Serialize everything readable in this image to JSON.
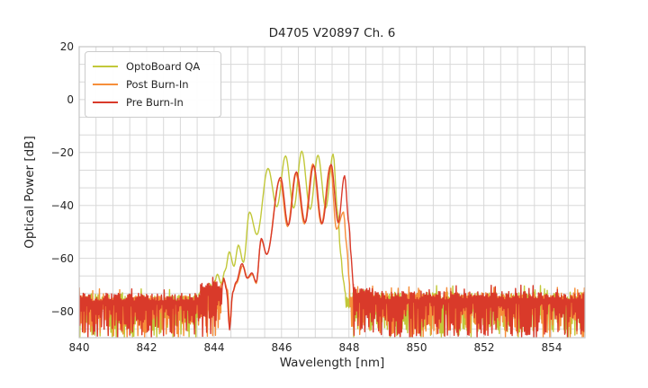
{
  "chart_data": {
    "type": "line",
    "title": "D4705 V20897 Ch. 6",
    "xlabel": "Wavelength [nm]",
    "ylabel": "Optical Power [dB]",
    "xlim": [
      840,
      855
    ],
    "ylim": [
      -90,
      20
    ],
    "xticks": [
      840,
      842,
      844,
      846,
      848,
      850,
      852,
      854
    ],
    "xtick_labels": [
      "840",
      "842",
      "844",
      "846",
      "848",
      "850",
      "852",
      "854"
    ],
    "yticks": [
      20,
      0,
      -20,
      -40,
      -60,
      -80
    ],
    "ytick_labels": [
      "20",
      "0",
      "−20",
      "−40",
      "−60",
      "−80"
    ],
    "grid": {
      "on": true,
      "x_minor_step_nm": 0.5,
      "y_minor_step_db": 6.667,
      "color": "#d8d8d8"
    },
    "legend": {
      "position": "upper-left"
    },
    "description": "Optical spectra of VCSEL channel 6: noise floor near −73 to −90 dB across 840–855 nm with a multimode laser envelope between ~844 and ~848.1 nm peaking near −20 dB (OptoBoard QA) and −25 dB (Pre/Post Burn-In).",
    "series": [
      {
        "name": "OptoBoard QA",
        "color": "#c2c83a",
        "seed": 7,
        "signal_points": [
          [
            843.55,
            -73.5
          ],
          [
            843.66,
            -71
          ],
          [
            843.76,
            -73.5
          ],
          [
            843.86,
            -69.5
          ],
          [
            843.97,
            -71.5
          ],
          [
            844.1,
            -66
          ],
          [
            844.21,
            -69.5
          ],
          [
            844.33,
            -64.5
          ],
          [
            844.45,
            -57.5
          ],
          [
            844.59,
            -63
          ],
          [
            844.72,
            -55
          ],
          [
            844.87,
            -61.5
          ],
          [
            845.05,
            -42.5
          ],
          [
            845.27,
            -51
          ],
          [
            845.6,
            -26
          ],
          [
            845.86,
            -40.5
          ],
          [
            846.12,
            -21.3
          ],
          [
            846.36,
            -41
          ],
          [
            846.6,
            -19.5
          ],
          [
            846.85,
            -41.5
          ],
          [
            847.08,
            -21
          ],
          [
            847.31,
            -41
          ],
          [
            847.53,
            -20.6
          ],
          [
            847.67,
            -43
          ],
          [
            847.75,
            -58
          ],
          [
            847.83,
            -68
          ],
          [
            847.9,
            -73.5
          ]
        ],
        "noise_before": [
          {
            "from": 840,
            "to": 843.55,
            "top": -73.5,
            "spread": 3.2,
            "depth": -90
          }
        ],
        "noise_after": [
          {
            "from": 847.9,
            "to": 848.12,
            "top": -74,
            "spread": 1.8,
            "depth": -79
          },
          {
            "from": 848.12,
            "to": 855,
            "top": -72.8,
            "spread": 3.2,
            "depth": -90
          }
        ]
      },
      {
        "name": "Post Burn-In",
        "color": "#f68e3a",
        "seed": 11,
        "signal_points": [
          [
            844.2,
            -70
          ],
          [
            844.3,
            -68.5
          ],
          [
            844.4,
            -72
          ],
          [
            844.47,
            -85
          ],
          [
            844.56,
            -72.5
          ],
          [
            844.66,
            -69.5
          ],
          [
            844.85,
            -62.8
          ],
          [
            845.0,
            -67.5
          ],
          [
            845.13,
            -66
          ],
          [
            845.25,
            -69.5
          ],
          [
            845.4,
            -53
          ],
          [
            845.56,
            -58.5
          ],
          [
            845.95,
            -30.3
          ],
          [
            846.18,
            -48
          ],
          [
            846.42,
            -27.8
          ],
          [
            846.68,
            -47
          ],
          [
            846.93,
            -24.3
          ],
          [
            847.18,
            -47
          ],
          [
            847.45,
            -25
          ],
          [
            847.63,
            -49
          ],
          [
            847.84,
            -42.5
          ],
          [
            847.93,
            -55
          ],
          [
            848.02,
            -70
          ]
        ],
        "noise_before": [
          {
            "from": 840,
            "to": 843.7,
            "top": -74,
            "spread": 3.0,
            "depth": -90
          },
          {
            "from": 843.7,
            "to": 844.2,
            "top": -70.5,
            "spread": 2.5,
            "depth": -90
          }
        ],
        "noise_after": [
          {
            "from": 848.02,
            "to": 855,
            "top": -73,
            "spread": 3.2,
            "depth": -90
          }
        ]
      },
      {
        "name": "Pre Burn-In",
        "color": "#d93a2a",
        "seed": 23,
        "signal_points": [
          [
            844.25,
            -70
          ],
          [
            844.29,
            -67.5
          ],
          [
            844.37,
            -72
          ],
          [
            844.46,
            -87
          ],
          [
            844.55,
            -73
          ],
          [
            844.65,
            -69
          ],
          [
            844.83,
            -62
          ],
          [
            844.98,
            -67.5
          ],
          [
            845.12,
            -65.5
          ],
          [
            845.25,
            -69
          ],
          [
            845.4,
            -52.5
          ],
          [
            845.56,
            -58.5
          ],
          [
            845.97,
            -29.4
          ],
          [
            846.2,
            -47.5
          ],
          [
            846.44,
            -27.3
          ],
          [
            846.7,
            -46.5
          ],
          [
            846.95,
            -24.8
          ],
          [
            847.2,
            -46.9
          ],
          [
            847.47,
            -24.5
          ],
          [
            847.68,
            -46.5
          ],
          [
            847.87,
            -28.8
          ],
          [
            848.0,
            -47
          ],
          [
            848.07,
            -60
          ],
          [
            848.13,
            -71.5
          ]
        ],
        "noise_before": [
          {
            "from": 840,
            "to": 843.6,
            "top": -73.2,
            "spread": 3.2,
            "depth": -90
          },
          {
            "from": 843.6,
            "to": 844.25,
            "top": -68.8,
            "spread": 2.8,
            "depth": -90
          }
        ],
        "noise_after": [
          {
            "from": 848.13,
            "to": 848.7,
            "top": -70.8,
            "spread": 2.5,
            "depth": -90
          },
          {
            "from": 848.7,
            "to": 855,
            "top": -72.5,
            "spread": 3.2,
            "depth": -90
          }
        ]
      }
    ]
  }
}
